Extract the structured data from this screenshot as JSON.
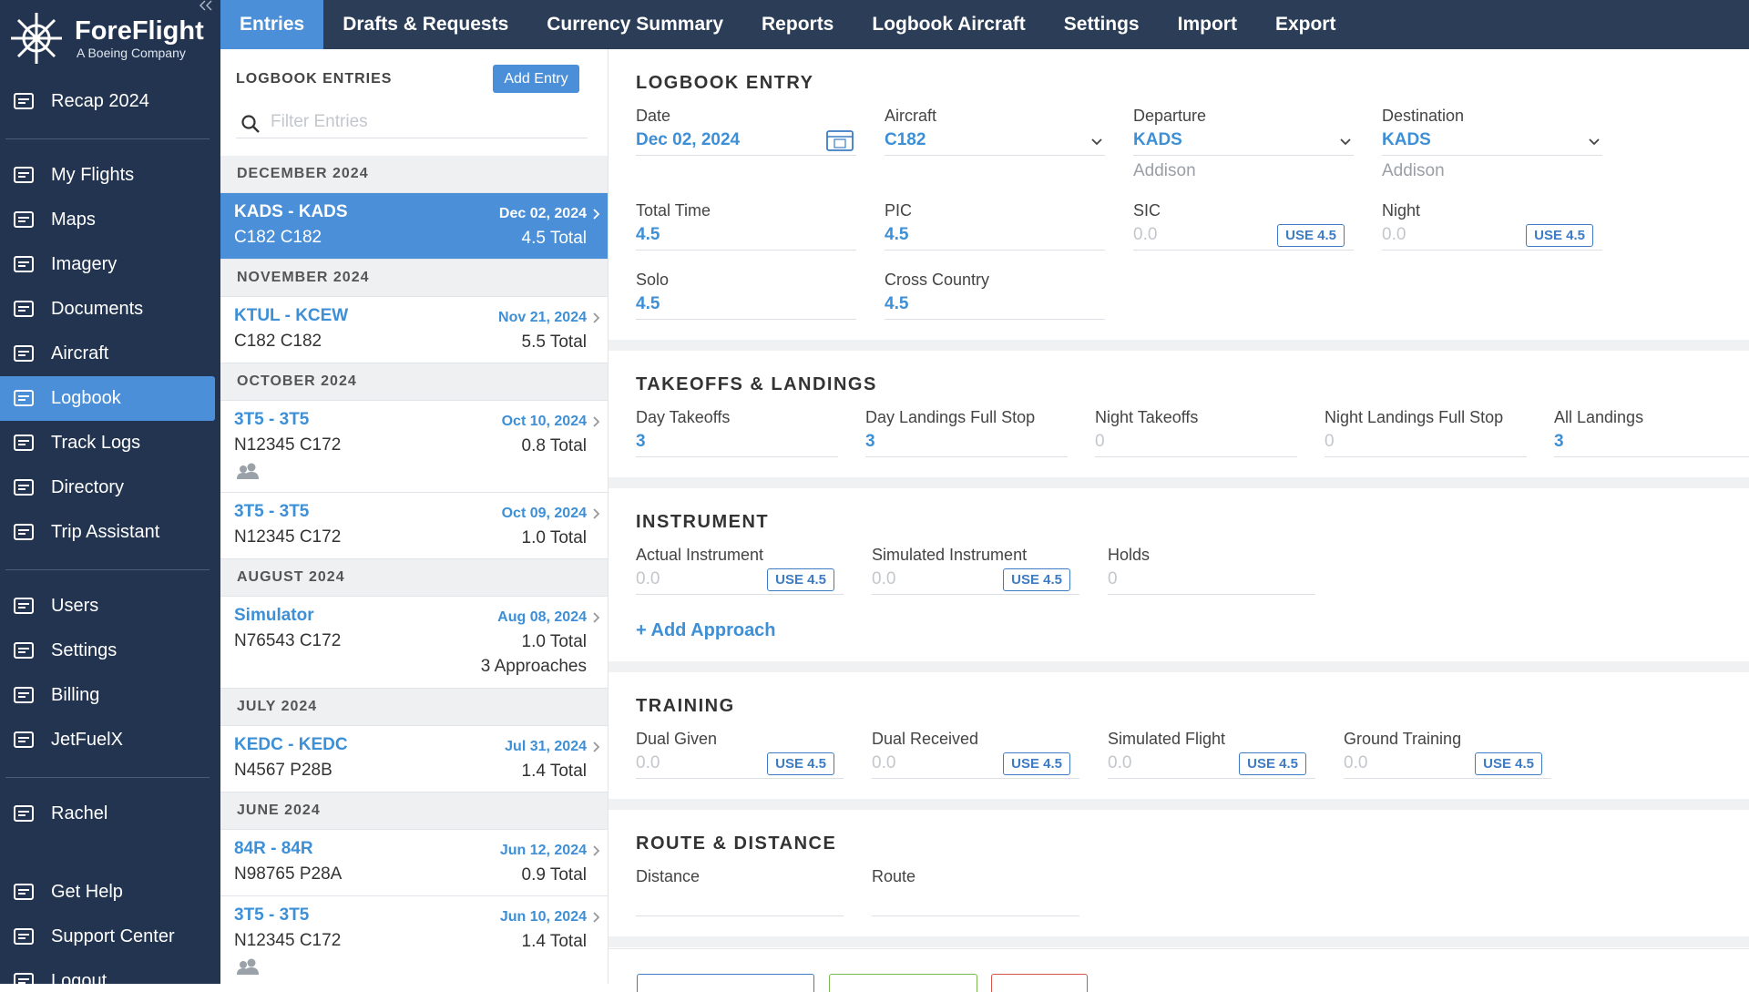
{
  "sidebar": {
    "brand": "ForeFlight",
    "tagline": "A Boeing Company",
    "groups": [
      [
        {
          "label": "Recap 2024"
        }
      ],
      [
        {
          "label": "My Flights"
        },
        {
          "label": "Maps"
        },
        {
          "label": "Imagery"
        },
        {
          "label": "Documents"
        },
        {
          "label": "Aircraft"
        },
        {
          "label": "Logbook",
          "active": true
        },
        {
          "label": "Track Logs"
        },
        {
          "label": "Directory"
        },
        {
          "label": "Trip Assistant"
        }
      ],
      [
        {
          "label": "Users"
        },
        {
          "label": "Settings"
        },
        {
          "label": "Billing"
        },
        {
          "label": "JetFuelX"
        }
      ],
      [
        {
          "label": "Rachel"
        }
      ],
      [
        {
          "label": "Get Help"
        },
        {
          "label": "Support Center"
        },
        {
          "label": "Logout"
        }
      ]
    ]
  },
  "tabs": [
    {
      "label": "Entries",
      "active": true
    },
    {
      "label": "Drafts & Requests"
    },
    {
      "label": "Currency Summary"
    },
    {
      "label": "Reports"
    },
    {
      "label": "Logbook Aircraft"
    },
    {
      "label": "Settings"
    },
    {
      "label": "Import"
    },
    {
      "label": "Export"
    }
  ],
  "list": {
    "title": "LOGBOOK ENTRIES",
    "add_button": "Add Entry",
    "filter_placeholder": "Filter Entries",
    "groups": [
      {
        "month": "DECEMBER 2024",
        "entries": [
          {
            "route": "KADS - KADS",
            "date": "Dec 02, 2024",
            "aircraft": "C182 C182",
            "total": "4.5 Total",
            "selected": true
          }
        ]
      },
      {
        "month": "NOVEMBER 2024",
        "entries": [
          {
            "route": "KTUL - KCEW",
            "date": "Nov 21, 2024",
            "aircraft": "C182 C182",
            "total": "5.5 Total"
          }
        ]
      },
      {
        "month": "OCTOBER 2024",
        "entries": [
          {
            "route": "3T5 - 3T5",
            "date": "Oct 10, 2024",
            "aircraft": "N12345 C172",
            "total": "0.8 Total",
            "shared": true
          },
          {
            "route": "3T5 - 3T5",
            "date": "Oct 09, 2024",
            "aircraft": "N12345 C172",
            "total": "1.0 Total"
          }
        ]
      },
      {
        "month": "AUGUST 2024",
        "entries": [
          {
            "route": "Simulator",
            "date": "Aug 08, 2024",
            "aircraft": "N76543 C172",
            "total": "1.0 Total",
            "extra": "3 Approaches"
          }
        ]
      },
      {
        "month": "JULY 2024",
        "entries": [
          {
            "route": "KEDC - KEDC",
            "date": "Jul 31, 2024",
            "aircraft": "N4567 P28B",
            "total": "1.4 Total"
          }
        ]
      },
      {
        "month": "JUNE 2024",
        "entries": [
          {
            "route": "84R - 84R",
            "date": "Jun 12, 2024",
            "aircraft": "N98765 P28A",
            "total": "0.9 Total"
          },
          {
            "route": "3T5 - 3T5",
            "date": "Jun 10, 2024",
            "aircraft": "N12345 C172",
            "total": "1.4 Total",
            "shared": true
          }
        ]
      }
    ]
  },
  "entry": {
    "sections": [
      {
        "title": "LOGBOOK ENTRY",
        "fields": [
          {
            "label": "Date",
            "value": "Dec 02, 2024",
            "control": "calendar"
          },
          {
            "label": "Aircraft",
            "value": "C182",
            "control": "dropdown"
          },
          {
            "label": "Departure",
            "value": "KADS",
            "control": "dropdown",
            "sub": "Addison"
          },
          {
            "label": "Destination",
            "value": "KADS",
            "control": "dropdown",
            "sub": "Addison"
          },
          {
            "label": "Total Time",
            "value": "4.5"
          },
          {
            "label": "PIC",
            "value": "4.5"
          },
          {
            "label": "SIC",
            "value": "0.0",
            "empty": true,
            "button": "USE 4.5"
          },
          {
            "label": "Night",
            "value": "0.0",
            "empty": true,
            "button": "USE 4.5"
          },
          {
            "label": "Solo",
            "value": "4.5"
          },
          {
            "label": "Cross Country",
            "value": "4.5"
          }
        ]
      },
      {
        "title": "TAKEOFFS & LANDINGS",
        "fields": [
          {
            "label": "Day Takeoffs",
            "value": "3"
          },
          {
            "label": "Day Landings Full Stop",
            "value": "3"
          },
          {
            "label": "Night Takeoffs",
            "value": "0",
            "empty": true
          },
          {
            "label": "Night Landings Full Stop",
            "value": "0",
            "empty": true
          },
          {
            "label": "All Landings",
            "value": "3"
          }
        ]
      },
      {
        "title": "INSTRUMENT",
        "fields": [
          {
            "label": "Actual Instrument",
            "value": "0.0",
            "empty": true,
            "button": "USE 4.5"
          },
          {
            "label": "Simulated Instrument",
            "value": "0.0",
            "empty": true,
            "button": "USE 4.5"
          },
          {
            "label": "Holds",
            "value": "0",
            "empty": true
          }
        ],
        "link": "+ Add Approach"
      },
      {
        "title": "TRAINING",
        "fields": [
          {
            "label": "Dual Given",
            "value": "0.0",
            "empty": true,
            "button": "USE 4.5"
          },
          {
            "label": "Dual Received",
            "value": "0.0",
            "empty": true,
            "button": "USE 4.5"
          },
          {
            "label": "Simulated Flight",
            "value": "0.0",
            "empty": true,
            "button": "USE 4.5"
          },
          {
            "label": "Ground Training",
            "value": "0.0",
            "empty": true,
            "button": "USE 4.5"
          }
        ]
      },
      {
        "title": "ROUTE & DISTANCE",
        "fields": [
          {
            "label": "Distance"
          },
          {
            "label": "Route"
          }
        ]
      }
    ]
  }
}
